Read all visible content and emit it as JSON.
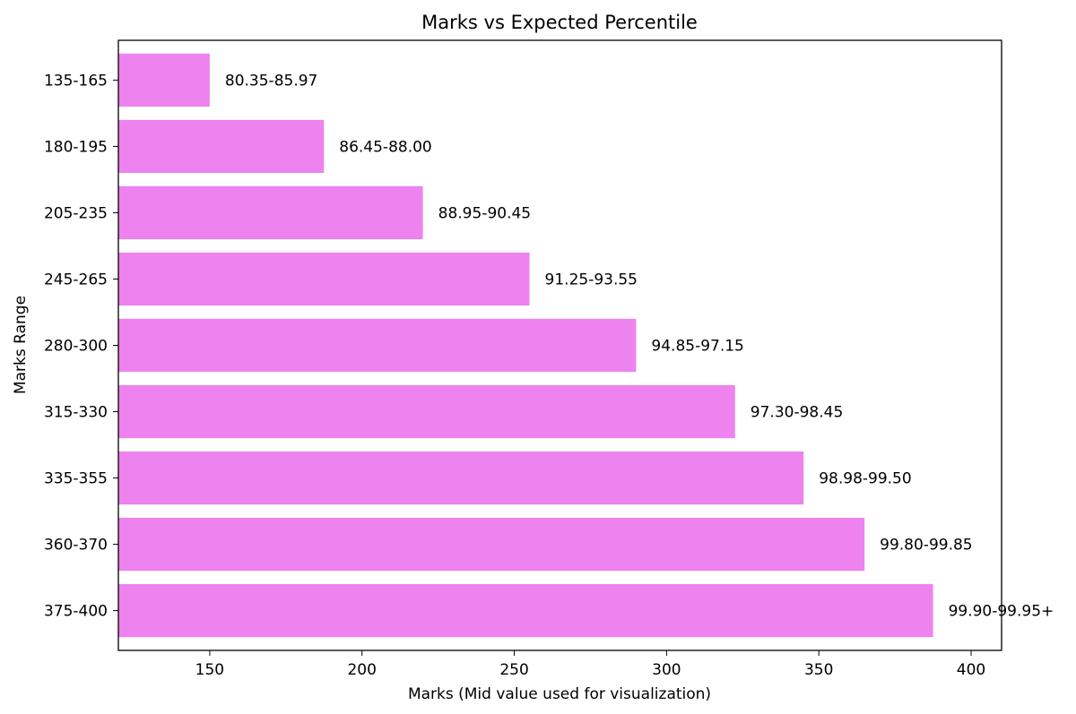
{
  "chart_data": {
    "type": "bar",
    "orientation": "horizontal",
    "title": "Marks vs Expected Percentile",
    "xlabel": "Marks (Mid value used for visualization)",
    "ylabel": "Marks Range",
    "categories": [
      "135-165",
      "180-195",
      "205-235",
      "245-265",
      "280-300",
      "315-330",
      "335-355",
      "360-370",
      "375-400"
    ],
    "values": [
      150,
      187.5,
      220,
      255,
      290,
      322.5,
      345,
      365,
      387.5
    ],
    "bar_labels": [
      "80.35-85.97",
      "86.45-88.00",
      "88.95-90.45",
      "91.25-93.55",
      "94.85-97.15",
      "97.30-98.45",
      "98.98-99.50",
      "99.80-99.85",
      "99.90-99.95+"
    ],
    "xticks": [
      150,
      200,
      250,
      300,
      350,
      400
    ],
    "xlim": [
      120,
      410
    ],
    "grid": false,
    "bar_color": "#ee82ee"
  }
}
